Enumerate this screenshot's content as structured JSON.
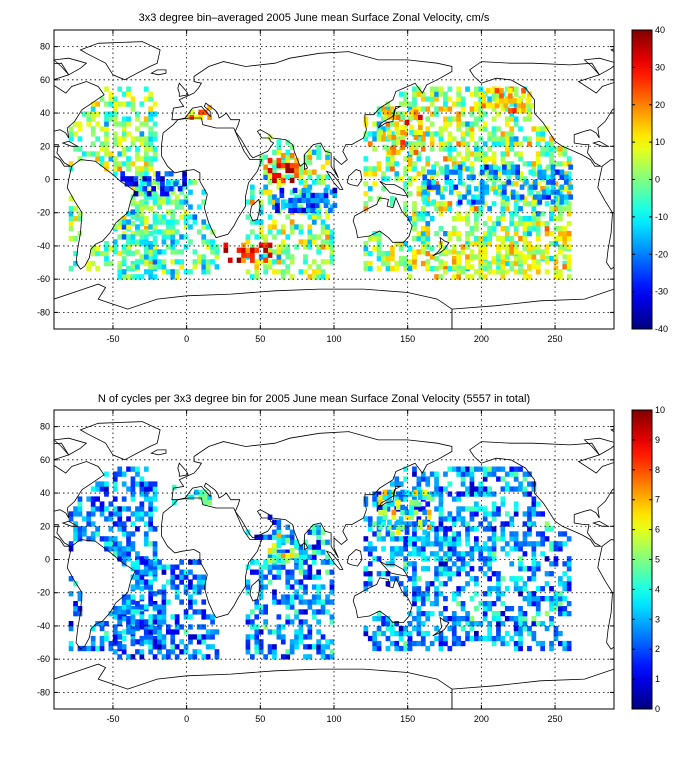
{
  "chart_data": [
    {
      "type": "heatmap",
      "title": "3x3 degree bin–averaged 2005 June mean Surface Zonal Velocity, cm/s",
      "xlim": [
        -90,
        290
      ],
      "ylim": [
        -90,
        90
      ],
      "x_ticks": [
        -50,
        0,
        50,
        100,
        150,
        200,
        250
      ],
      "y_ticks": [
        -80,
        -60,
        -40,
        -20,
        0,
        20,
        40,
        60,
        80
      ],
      "grid": true,
      "bin_size_deg": 3,
      "colormap": "jet",
      "colorbar": {
        "min": -40,
        "max": 40,
        "ticks": [
          -40,
          -30,
          -20,
          -10,
          0,
          10,
          20,
          30,
          40
        ]
      },
      "regions": [
        {
          "lon": [
            -80,
            -20
          ],
          "lat": [
            -55,
            55
          ],
          "mean": 0,
          "spread": 14
        },
        {
          "lon": [
            -50,
            20
          ],
          "lat": [
            -60,
            0
          ],
          "mean": -6,
          "spread": 14
        },
        {
          "lon": [
            -45,
            0
          ],
          "lat": [
            -10,
            5
          ],
          "mean": -28,
          "spread": 8
        },
        {
          "lon": [
            -10,
            15
          ],
          "lat": [
            30,
            45
          ],
          "mean": 14,
          "spread": 10
        },
        {
          "lon": [
            40,
            100
          ],
          "lat": [
            -60,
            25
          ],
          "mean": 0,
          "spread": 16
        },
        {
          "lon": [
            55,
            75
          ],
          "lat": [
            -2,
            15
          ],
          "mean": 28,
          "spread": 10
        },
        {
          "lon": [
            60,
            100
          ],
          "lat": [
            -20,
            -5
          ],
          "mean": -24,
          "spread": 10
        },
        {
          "lon": [
            25,
            60
          ],
          "lat": [
            -50,
            -38
          ],
          "mean": 26,
          "spread": 10
        },
        {
          "lon": [
            120,
            260
          ],
          "lat": [
            -55,
            55
          ],
          "mean": 2,
          "spread": 16
        },
        {
          "lon": [
            130,
            160
          ],
          "lat": [
            15,
            40
          ],
          "mean": 14,
          "spread": 16
        },
        {
          "lon": [
            160,
            260
          ],
          "lat": [
            -15,
            8
          ],
          "mean": -18,
          "spread": 12
        },
        {
          "lon": [
            150,
            260
          ],
          "lat": [
            -60,
            -40
          ],
          "mean": 8,
          "spread": 10
        },
        {
          "lon": [
            200,
            240
          ],
          "lat": [
            40,
            55
          ],
          "mean": 14,
          "spread": 10
        }
      ]
    },
    {
      "type": "heatmap",
      "title": "N of cycles per 3x3 degree bin for 2005 June mean Surface Zonal Velocity (5557 in total)",
      "xlim": [
        -90,
        290
      ],
      "ylim": [
        -90,
        90
      ],
      "x_ticks": [
        -50,
        0,
        50,
        100,
        150,
        200,
        250
      ],
      "y_ticks": [
        -80,
        -60,
        -40,
        -20,
        0,
        20,
        40,
        60,
        80
      ],
      "grid": true,
      "bin_size_deg": 3,
      "colormap": "jet",
      "colorbar": {
        "min": 0,
        "max": 10,
        "ticks": [
          0,
          1,
          2,
          3,
          4,
          5,
          6,
          7,
          8,
          9,
          10
        ]
      },
      "regions": [
        {
          "lon": [
            -80,
            -20
          ],
          "lat": [
            -55,
            55
          ],
          "mean": 2.6,
          "spread": 1.6
        },
        {
          "lon": [
            -50,
            20
          ],
          "lat": [
            -60,
            0
          ],
          "mean": 2.4,
          "spread": 1.6
        },
        {
          "lon": [
            -10,
            15
          ],
          "lat": [
            30,
            45
          ],
          "mean": 4,
          "spread": 2
        },
        {
          "lon": [
            40,
            100
          ],
          "lat": [
            -60,
            25
          ],
          "mean": 2.8,
          "spread": 1.8
        },
        {
          "lon": [
            55,
            75
          ],
          "lat": [
            -2,
            15
          ],
          "mean": 5,
          "spread": 2
        },
        {
          "lon": [
            120,
            260
          ],
          "lat": [
            -55,
            55
          ],
          "mean": 2.8,
          "spread": 1.8
        },
        {
          "lon": [
            130,
            165
          ],
          "lat": [
            15,
            40
          ],
          "mean": 4.5,
          "spread": 2.5
        }
      ]
    }
  ]
}
